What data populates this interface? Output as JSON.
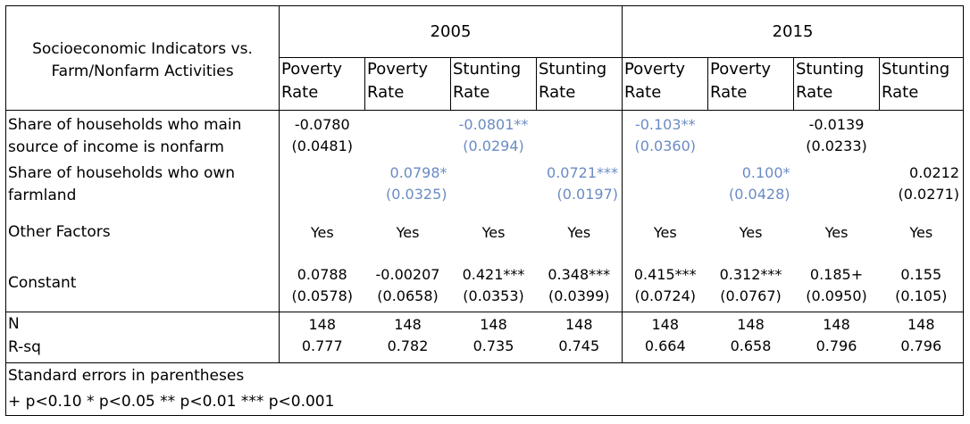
{
  "header": {
    "left_label_line1": "Socioeconomic Indicators vs.",
    "left_label_line2": "Farm/Nonfarm Activities",
    "year_2005": "2005",
    "year_2015": "2015"
  },
  "columns": [
    {
      "w1": "Poverty",
      "w2": "Rate"
    },
    {
      "w1": "Poverty",
      "w2": "Rate"
    },
    {
      "w1": "Stunting",
      "w2": "Rate"
    },
    {
      "w1": "Stunting",
      "w2": "Rate"
    },
    {
      "w1": "Poverty",
      "w2": "Rate"
    },
    {
      "w1": "Poverty",
      "w2": "Rate"
    },
    {
      "w1": "Stunting",
      "w2": "Rate"
    },
    {
      "w1": "Stunting",
      "w2": "Rate"
    }
  ],
  "rows": {
    "nonfarm": {
      "label1": "Share of households who main",
      "label2": "source of income is nonfarm",
      "c1_coef": "-0.0780",
      "c1_se": "(0.0481)",
      "c3_coef": "-0.0801**",
      "c3_se": "(0.0294)",
      "c5_coef": "-0.103**",
      "c5_se": "(0.0360)",
      "c7_coef": "-0.0139",
      "c7_se": "(0.0233)"
    },
    "farmland": {
      "label1": "Share of households who own",
      "label2": "farmland",
      "c2_coef": "0.0798*",
      "c2_se": "(0.0325)",
      "c4_coef": "0.0721***",
      "c4_se": "(0.0197)",
      "c6_coef": "0.100*",
      "c6_se": "(0.0428)",
      "c8_coef": "0.0212",
      "c8_se": "(0.0271)"
    },
    "other": {
      "label": "Other Factors",
      "values": [
        "Yes",
        "Yes",
        "Yes",
        "Yes",
        "Yes",
        "Yes",
        "Yes",
        "Yes"
      ]
    },
    "constant": {
      "label": "Constant",
      "coef": [
        "0.0788",
        "-0.00207",
        "0.421***",
        "0.348***",
        "0.415***",
        "0.312***",
        "0.185+",
        "0.155"
      ],
      "se": [
        "(0.0578)",
        "(0.0658)",
        "(0.0353)",
        "(0.0399)",
        "(0.0724)",
        "(0.0767)",
        "(0.0950)",
        "(0.105)"
      ]
    },
    "n": {
      "label": "N",
      "values": [
        "148",
        "148",
        "148",
        "148",
        "148",
        "148",
        "148",
        "148"
      ]
    },
    "rsq": {
      "label": "R-sq",
      "values": [
        "0.777",
        "0.782",
        "0.735",
        "0.745",
        "0.664",
        "0.658",
        "0.796",
        "0.796"
      ]
    }
  },
  "footer": {
    "line1": "Standard errors in parentheses",
    "line2": "+ p<0.10 * p<0.05 ** p<0.01 *** p<0.001"
  },
  "colors": {
    "significant_text": "#6a8bc4",
    "default_text": "#000000"
  }
}
